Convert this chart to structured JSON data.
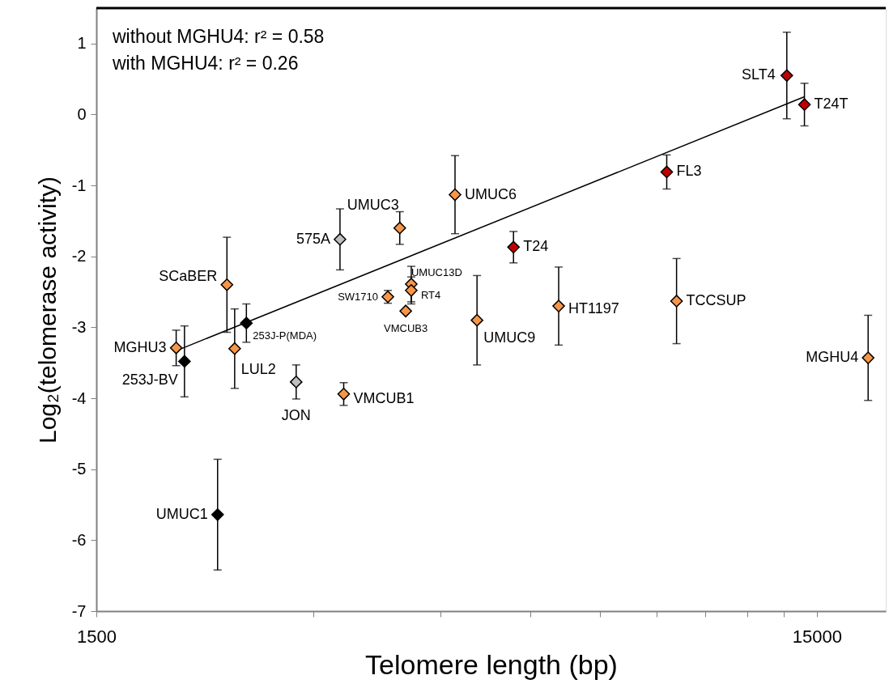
{
  "chart_data": {
    "type": "scatter",
    "xlabel": "Telomere length (bp)",
    "ylabel": "Log₂(telomerase activity)",
    "log": "x",
    "grid": false,
    "marker": "diamond",
    "xlim": [
      1500,
      18700
    ],
    "xticks": [
      1500,
      {
        "value": 3000,
        "label": null
      },
      {
        "value": 4500,
        "label": null
      },
      {
        "value": 6000,
        "label": null
      },
      {
        "value": 7500,
        "label": null
      },
      {
        "value": 9000,
        "label": null
      },
      {
        "value": 10500,
        "label": null
      },
      {
        "value": 12000,
        "label": null
      },
      {
        "value": 13500,
        "label": null
      },
      15000
    ],
    "ylim": [
      -7,
      1.5
    ],
    "yticks": [
      -7,
      -6,
      -5,
      -4,
      -3,
      -2,
      -1,
      0,
      1
    ],
    "series": [
      {
        "color": "#f79646",
        "x": [
          1936,
          2277,
          2334,
          3956,
          4720,
          3808,
          4104,
          4104,
          4032,
          5064,
          3307,
          6574,
          9582,
          17675
        ],
        "values": [
          -3.29,
          -2.4,
          -3.3,
          -1.6,
          -1.13,
          -2.57,
          -2.39,
          -2.48,
          -2.77,
          -2.9,
          -3.94,
          -2.7,
          -2.63,
          -3.43
        ],
        "errors": [
          0.25,
          0.67,
          0.56,
          0.23,
          0.55,
          0.09,
          0.25,
          0.19,
          null,
          0.63,
          0.16,
          0.55,
          0.6,
          0.6
        ]
      },
      {
        "color": "#c00000",
        "x": [
          5690,
          9286,
          13630,
          14420
        ],
        "values": [
          -1.87,
          -0.81,
          0.55,
          0.14
        ],
        "errors": [
          0.22,
          0.24,
          0.61,
          0.3
        ]
      },
      {
        "color": "#000000",
        "x": [
          1988,
          2423,
          2210
        ],
        "values": [
          -3.48,
          -2.94,
          -5.64
        ],
        "errors": [
          0.5,
          0.27,
          0.78
        ]
      },
      {
        "color": "#bfbfbf",
        "x": [
          3268,
          2841
        ],
        "values": [
          -1.76,
          -3.77
        ],
        "errors": [
          0.43,
          0.24
        ]
      },
      {
        "type": "line",
        "marker": "none",
        "color": "#000000",
        "x": [
          1936,
          14420
        ],
        "values": [
          -3.33,
          0.25
        ]
      }
    ],
    "annotations": [
      "without MGHU4:  r² = 0.58",
      "with MGHU4:       r² = 0.26",
      {
        "text": "SLT4",
        "x": 13630,
        "y": 0.55
      },
      {
        "text": "T24T",
        "x": 14420,
        "y": 0.14
      },
      {
        "text": "FL3",
        "x": 9286,
        "y": -0.81
      },
      {
        "text": "UMUC6",
        "x": 4720,
        "y": -1.13
      },
      {
        "text": "UMUC3",
        "x": 3956,
        "y": -1.6
      },
      {
        "text": "575A",
        "x": 3268,
        "y": -1.76
      },
      {
        "text": "T24",
        "x": 5690,
        "y": -1.87
      },
      {
        "text": "SCaBER",
        "x": 2277,
        "y": -2.4
      },
      {
        "text": "UMUC13D",
        "x": 4104,
        "y": -2.39
      },
      {
        "text": "SW1710",
        "x": 3808,
        "y": -2.57
      },
      {
        "text": "RT4",
        "x": 4104,
        "y": -2.48
      },
      {
        "text": "VMCUB3",
        "x": 4032,
        "y": -2.77
      },
      {
        "text": "UMUC9",
        "x": 5064,
        "y": -2.9
      },
      {
        "text": "HT1197",
        "x": 6574,
        "y": -2.7
      },
      {
        "text": "TCCSUP",
        "x": 9582,
        "y": -2.63
      },
      {
        "text": "MGHU3",
        "x": 1936,
        "y": -3.29
      },
      {
        "text": "253J-P(MDA)",
        "x": 2423,
        "y": -2.94
      },
      {
        "text": "253J-BV",
        "x": 1988,
        "y": -3.48
      },
      {
        "text": "LUL2",
        "x": 2334,
        "y": -3.3
      },
      {
        "text": "JON",
        "x": 2841,
        "y": -3.77
      },
      {
        "text": "VMCUB1",
        "x": 3307,
        "y": -3.94
      },
      {
        "text": "UMUC1",
        "x": 2210,
        "y": -5.64
      },
      {
        "text": "MGHU4",
        "x": 17675,
        "y": -3.43
      }
    ]
  }
}
